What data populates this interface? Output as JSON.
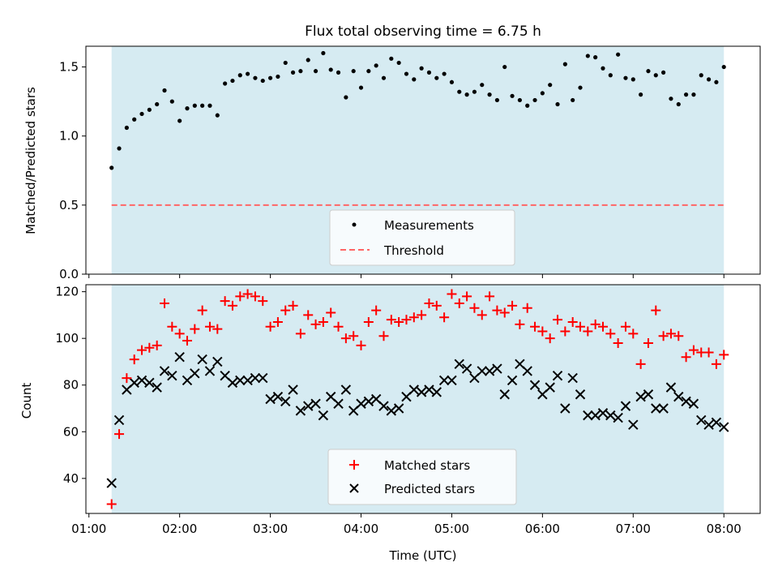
{
  "title": "Flux total observing time = 6.75 h",
  "colors": {
    "observing_band": "#add8e6",
    "measurement": "#000000",
    "threshold": "#ff6666",
    "matched": "#ff0000",
    "predicted": "#000000"
  },
  "chart_data": [
    {
      "type": "scatter",
      "ylabel": "Matched/Predicted stars",
      "xlabel": "",
      "x_unit": "hours UTC",
      "xlim": [
        "00:58",
        "08:24"
      ],
      "ylim": [
        0,
        1.65
      ],
      "yticks": [
        0.0,
        0.5,
        1.0,
        1.5
      ],
      "ytick_labels": [
        "0.0",
        "0.5",
        "1.0",
        "1.5"
      ],
      "shaded_span": [
        "01:15",
        "08:00"
      ],
      "threshold": 0.5,
      "legend": {
        "placement": "lower-center",
        "entries": [
          "Measurements",
          "Threshold"
        ]
      },
      "series": [
        {
          "name": "Measurements",
          "x": [
            "01:15",
            "01:20",
            "01:25",
            "01:30",
            "01:35",
            "01:40",
            "01:45",
            "01:50",
            "01:55",
            "02:00",
            "02:05",
            "02:10",
            "02:15",
            "02:20",
            "02:25",
            "02:30",
            "02:35",
            "02:40",
            "02:45",
            "02:50",
            "02:55",
            "03:00",
            "03:05",
            "03:10",
            "03:15",
            "03:20",
            "03:25",
            "03:30",
            "03:35",
            "03:40",
            "03:45",
            "03:50",
            "03:55",
            "04:00",
            "04:05",
            "04:10",
            "04:15",
            "04:20",
            "04:25",
            "04:30",
            "04:35",
            "04:40",
            "04:45",
            "04:50",
            "04:55",
            "05:00",
            "05:05",
            "05:10",
            "05:15",
            "05:20",
            "05:25",
            "05:30",
            "05:35",
            "05:40",
            "05:45",
            "05:50",
            "05:55",
            "06:00",
            "06:05",
            "06:10",
            "06:15",
            "06:20",
            "06:25",
            "06:30",
            "06:35",
            "06:40",
            "06:45",
            "06:50",
            "06:55",
            "07:00",
            "07:05",
            "07:10",
            "07:15",
            "07:20",
            "07:25",
            "07:30",
            "07:35",
            "07:40",
            "07:45",
            "07:50",
            "07:55",
            "08:00"
          ],
          "y": [
            0.77,
            0.91,
            1.06,
            1.12,
            1.16,
            1.19,
            1.23,
            1.33,
            1.25,
            1.11,
            1.2,
            1.22,
            1.22,
            1.22,
            1.15,
            1.38,
            1.4,
            1.44,
            1.45,
            1.42,
            1.4,
            1.42,
            1.43,
            1.53,
            1.46,
            1.47,
            1.55,
            1.47,
            1.6,
            1.48,
            1.46,
            1.28,
            1.47,
            1.35,
            1.47,
            1.51,
            1.42,
            1.56,
            1.53,
            1.45,
            1.41,
            1.49,
            1.46,
            1.42,
            1.45,
            1.39,
            1.32,
            1.3,
            1.32,
            1.37,
            1.3,
            1.26,
            1.5,
            1.29,
            1.26,
            1.22,
            1.26,
            1.31,
            1.37,
            1.23,
            1.52,
            1.26,
            1.35,
            1.58,
            1.57,
            1.49,
            1.44,
            1.59,
            1.42,
            1.41,
            1.3,
            1.47,
            1.44,
            1.46,
            1.27,
            1.23,
            1.3,
            1.3,
            1.44,
            1.41,
            1.39,
            1.5
          ]
        }
      ]
    },
    {
      "type": "scatter",
      "ylabel": "Count",
      "xlabel": "Time (UTC)",
      "xlim": [
        "00:58",
        "08:24"
      ],
      "ylim": [
        25,
        123
      ],
      "yticks": [
        40,
        60,
        80,
        100,
        120
      ],
      "ytick_labels": [
        "40",
        "60",
        "80",
        "100",
        "120"
      ],
      "xticks": [
        "01:00",
        "02:00",
        "03:00",
        "04:00",
        "05:00",
        "06:00",
        "07:00",
        "08:00"
      ],
      "shaded_span": [
        "01:15",
        "08:00"
      ],
      "legend": {
        "placement": "lower-center",
        "entries": [
          "Matched stars",
          "Predicted stars"
        ]
      },
      "x": [
        "01:15",
        "01:20",
        "01:25",
        "01:30",
        "01:35",
        "01:40",
        "01:45",
        "01:50",
        "01:55",
        "02:00",
        "02:05",
        "02:10",
        "02:15",
        "02:20",
        "02:25",
        "02:30",
        "02:35",
        "02:40",
        "02:45",
        "02:50",
        "02:55",
        "03:00",
        "03:05",
        "03:10",
        "03:15",
        "03:20",
        "03:25",
        "03:30",
        "03:35",
        "03:40",
        "03:45",
        "03:50",
        "03:55",
        "04:00",
        "04:05",
        "04:10",
        "04:15",
        "04:20",
        "04:25",
        "04:30",
        "04:35",
        "04:40",
        "04:45",
        "04:50",
        "04:55",
        "05:00",
        "05:05",
        "05:10",
        "05:15",
        "05:20",
        "05:25",
        "05:30",
        "05:35",
        "05:40",
        "05:45",
        "05:50",
        "05:55",
        "06:00",
        "06:05",
        "06:10",
        "06:15",
        "06:20",
        "06:25",
        "06:30",
        "06:35",
        "06:40",
        "06:45",
        "06:50",
        "06:55",
        "07:00",
        "07:05",
        "07:10",
        "07:15",
        "07:20",
        "07:25",
        "07:30",
        "07:35",
        "07:40",
        "07:45",
        "07:50",
        "07:55",
        "08:00"
      ],
      "series": [
        {
          "name": "Matched stars",
          "marker": "plus",
          "values": [
            29,
            59,
            83,
            91,
            95,
            96,
            97,
            115,
            105,
            102,
            99,
            104,
            112,
            105,
            104,
            116,
            114,
            118,
            119,
            118,
            116,
            105,
            107,
            112,
            114,
            102,
            110,
            106,
            107,
            111,
            105,
            100,
            101,
            97,
            107,
            112,
            101,
            108,
            107,
            108,
            109,
            110,
            115,
            114,
            109,
            119,
            115,
            118,
            113,
            110,
            118,
            112,
            111,
            114,
            106,
            113,
            105,
            103,
            100,
            108,
            103,
            107,
            105,
            103,
            106,
            105,
            102,
            98,
            105,
            102,
            89,
            98,
            112,
            101,
            102,
            101,
            92,
            95,
            94,
            94,
            89,
            93
          ]
        },
        {
          "name": "Predicted stars",
          "marker": "x",
          "values": [
            38,
            65,
            78,
            81,
            82,
            81,
            79,
            86,
            84,
            92,
            82,
            85,
            91,
            86,
            90,
            84,
            81,
            82,
            82,
            83,
            83,
            74,
            75,
            73,
            78,
            69,
            71,
            72,
            67,
            75,
            72,
            78,
            69,
            72,
            73,
            74,
            71,
            69,
            70,
            75,
            78,
            77,
            78,
            77,
            82,
            82,
            89,
            87,
            83,
            86,
            86,
            87,
            76,
            82,
            89,
            86,
            80,
            76,
            79,
            84,
            70,
            83,
            76,
            67,
            67,
            68,
            67,
            66,
            71,
            63,
            75,
            76,
            70,
            70,
            79,
            75,
            73,
            72,
            65,
            63,
            64,
            62
          ]
        }
      ]
    }
  ]
}
